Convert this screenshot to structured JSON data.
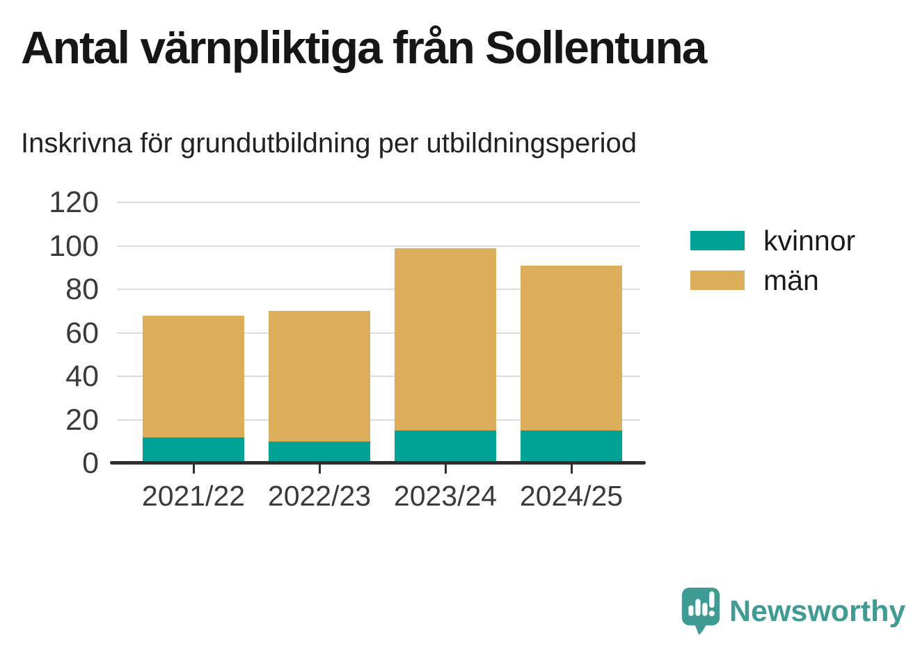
{
  "chart_data": {
    "type": "bar",
    "stacked": true,
    "title": "Antal värnpliktiga från Sollentuna",
    "subtitle": "Inskrivna för grundutbildning per utbildningsperiod",
    "categories": [
      "2021/22",
      "2022/23",
      "2023/24",
      "2024/25"
    ],
    "series": [
      {
        "name": "kvinnor",
        "color": "#00a296",
        "values": [
          12,
          10,
          15,
          15
        ]
      },
      {
        "name": "män",
        "color": "#dcae5b",
        "values": [
          56,
          60,
          84,
          76
        ]
      }
    ],
    "totals": [
      68,
      70,
      99,
      91
    ],
    "xlabel": "",
    "ylabel": "",
    "ylim": [
      0,
      120
    ],
    "yticks": [
      0,
      20,
      40,
      60,
      80,
      100,
      120
    ],
    "grid": true,
    "legend_position": "right"
  },
  "branding": {
    "logo_text": "Newsworthy",
    "logo_color": "#3f9b94"
  },
  "colors": {
    "background": "#ffffff",
    "gridline": "#dcdcdc",
    "axis_line": "#2e2e2e",
    "title_text": "#161616",
    "subtitle_text": "#222222",
    "tick_text": "#3a3a3a"
  }
}
